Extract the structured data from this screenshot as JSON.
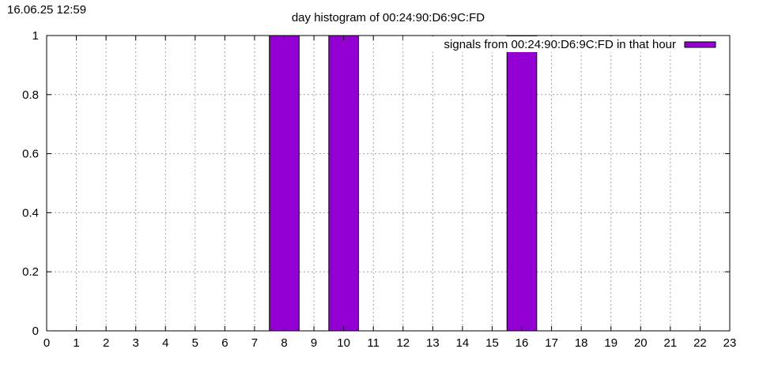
{
  "timestamp": "16.06.25 12:59",
  "chart_data": {
    "type": "bar",
    "title": "day histogram of 00:24:90:D6:9C:FD",
    "xlabel": "",
    "ylabel": "",
    "xlim": [
      0,
      23
    ],
    "ylim": [
      0,
      1
    ],
    "xticks": [
      "0",
      "1",
      "2",
      "3",
      "4",
      "5",
      "6",
      "7",
      "8",
      "9",
      "10",
      "11",
      "12",
      "13",
      "14",
      "15",
      "16",
      "17",
      "18",
      "19",
      "20",
      "21",
      "22",
      "23"
    ],
    "yticks": [
      "0",
      "0.2",
      "0.4",
      "0.6",
      "0.8",
      "1"
    ],
    "grid": true,
    "legend_position": "top-right",
    "series": [
      {
        "name": "signals from 00:24:90:D6:9C:FD in that hour",
        "color": "#9400d3",
        "bars": [
          {
            "x": 8,
            "value": 1
          },
          {
            "x": 10,
            "value": 1
          },
          {
            "x": 16,
            "value": 1
          }
        ]
      }
    ]
  }
}
